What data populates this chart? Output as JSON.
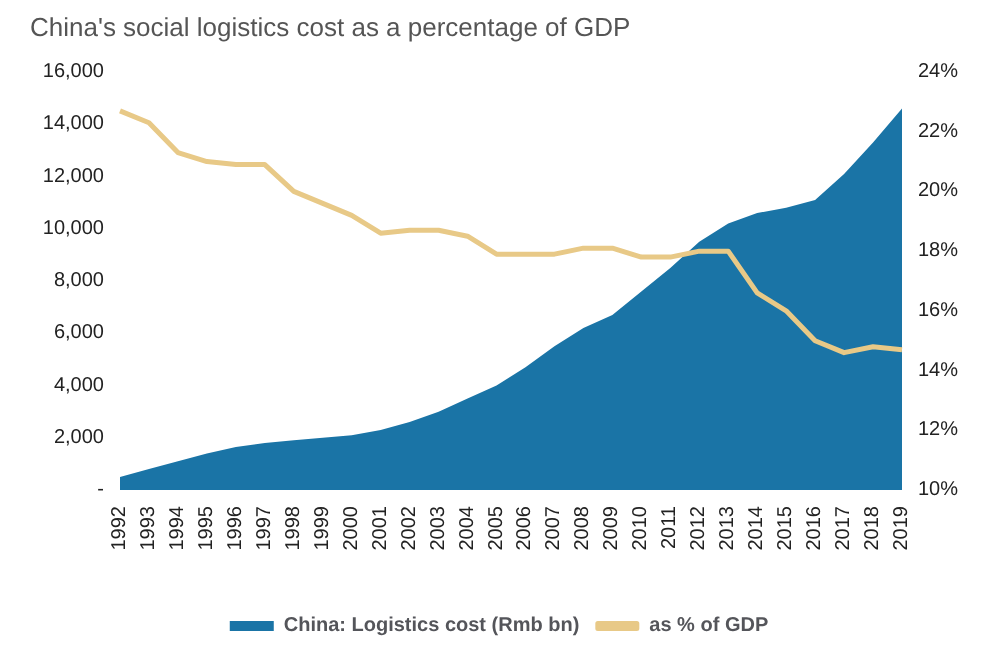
{
  "chart_data": {
    "type": "area",
    "title": "China's social logistics cost as a percentage of GDP",
    "categories": [
      "1992",
      "1993",
      "1994",
      "1995",
      "1996",
      "1997",
      "1998",
      "1999",
      "2000",
      "2001",
      "2002",
      "2003",
      "2004",
      "2005",
      "2006",
      "2007",
      "2008",
      "2009",
      "2010",
      "2011",
      "2012",
      "2013",
      "2014",
      "2015",
      "2016",
      "2017",
      "2018",
      "2019"
    ],
    "series": [
      {
        "name": "China: Logistics cost (Rmb bn)",
        "color": "#1a74a6",
        "values": [
          500,
          800,
          1100,
          1400,
          1650,
          1800,
          1900,
          2000,
          2100,
          2300,
          2600,
          3000,
          3500,
          4000,
          4700,
          5500,
          6200,
          6700,
          7600,
          8500,
          9500,
          10200,
          10600,
          10800,
          11100,
          12100,
          13300,
          14600
        ]
      },
      {
        "name": "as % of GDP",
        "color": "#e8c987",
        "type": "line",
        "axis": "y2",
        "values": [
          22.7,
          22.3,
          21.3,
          21.0,
          20.9,
          20.9,
          20.0,
          19.6,
          19.2,
          18.6,
          18.7,
          18.7,
          18.5,
          17.9,
          17.9,
          17.9,
          18.1,
          18.1,
          17.8,
          17.8,
          18.0,
          18.0,
          16.6,
          16.0,
          15.0,
          14.6,
          14.8,
          14.7
        ]
      }
    ],
    "ylim": [
      0,
      16000
    ],
    "yticks": [
      {
        "value": 0,
        "label": "-"
      },
      {
        "value": 2000,
        "label": "2,000"
      },
      {
        "value": 4000,
        "label": "4,000"
      },
      {
        "value": 6000,
        "label": "6,000"
      },
      {
        "value": 8000,
        "label": "8,000"
      },
      {
        "value": 10000,
        "label": "10,000"
      },
      {
        "value": 12000,
        "label": "12,000"
      },
      {
        "value": 14000,
        "label": "14,000"
      },
      {
        "value": 16000,
        "label": "16,000"
      }
    ],
    "y2lim": [
      10,
      24
    ],
    "y2ticks": [
      {
        "value": 10,
        "label": "10%"
      },
      {
        "value": 12,
        "label": "12%"
      },
      {
        "value": 14,
        "label": "14%"
      },
      {
        "value": 16,
        "label": "16%"
      },
      {
        "value": 18,
        "label": "18%"
      },
      {
        "value": 20,
        "label": "20%"
      },
      {
        "value": 22,
        "label": "22%"
      },
      {
        "value": 24,
        "label": "24%"
      }
    ],
    "grid": false,
    "legend": "bottom",
    "marker": "none"
  }
}
